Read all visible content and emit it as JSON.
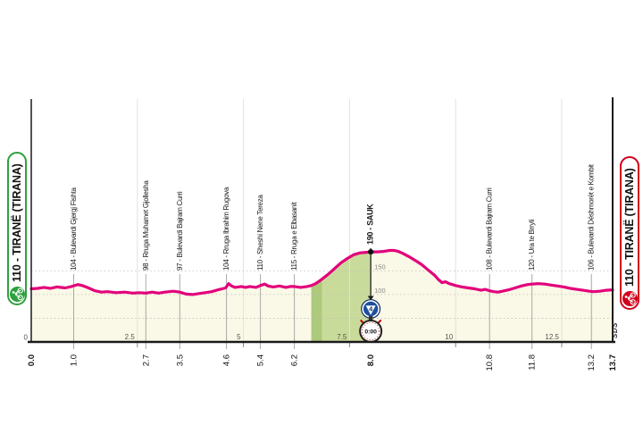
{
  "race": {
    "start_label": "110 - TIRANË (TIRANA)",
    "finish_label": "110 - TIRANË (TIRANA)",
    "branding": "SDS"
  },
  "colors": {
    "pink": "#E2017B",
    "area_fill": "#FAF8E6",
    "climb_fill": "#C9DB9B",
    "climb_steep_fill": "#ADC97C",
    "start_green": "#2DA13C",
    "finish_red": "#D0021B",
    "axis": "#1A1A1A",
    "grid_dotted": "#BFBFBF",
    "grid_major": "#E3E3D9",
    "waypoint_line": "#A8A8A8",
    "cat4_blue": "#1D4F9E",
    "cat4_blue_dark": "#0F2B66",
    "timecheck_red": "#C00005"
  },
  "chart_data": {
    "type": "area",
    "x_unit": "km",
    "y_unit": "m",
    "xlim": [
      0,
      13.7
    ],
    "ylim": [
      0,
      200
    ],
    "x_major_ticks": [
      2.5,
      5,
      7.5,
      10,
      12.5
    ],
    "x_major_tick_labels": [
      "2.5",
      "5",
      "7.5",
      "10",
      "12.5"
    ],
    "y_zero_label": "0",
    "grid_elevations": [
      50,
      100,
      150
    ],
    "side_elevation_labels": [
      {
        "label": "150",
        "m": 150
      },
      {
        "label": "100",
        "m": 100
      }
    ],
    "climb_segment": {
      "from_km": 6.6,
      "to_km": 8.0,
      "steep_band_to_km": 6.85
    },
    "waypoints": [
      {
        "km": 0.0,
        "km_label": "0.0",
        "name": "",
        "bold": true,
        "summit": false
      },
      {
        "km": 1.0,
        "km_label": "1.0",
        "name": "104 - Bulevardi Gjergj Fishta",
        "bold": false,
        "summit": false
      },
      {
        "km": 2.7,
        "km_label": "2.7",
        "name": "98 - Rruga Muhamet Gjollesha",
        "bold": false,
        "summit": false
      },
      {
        "km": 3.5,
        "km_label": "3.5",
        "name": "97 - Bulevardi Bajram Curri",
        "bold": false,
        "summit": false
      },
      {
        "km": 4.6,
        "km_label": "4.6",
        "name": "104 - Rruga Ibrahim Rugova",
        "bold": false,
        "summit": false
      },
      {
        "km": 5.4,
        "km_label": "5.4",
        "name": "110 - Sheshi Nene Tereza",
        "bold": false,
        "summit": false
      },
      {
        "km": 6.2,
        "km_label": "6.2",
        "name": "115 - Rruga e Elbasanit",
        "bold": false,
        "summit": false
      },
      {
        "km": 8.0,
        "km_label": "8.0",
        "name": "190 - SAUK",
        "bold": true,
        "summit": true
      },
      {
        "km": 10.8,
        "km_label": "10.8",
        "name": "108 - Bulevardi Bajram Curri",
        "bold": false,
        "summit": false
      },
      {
        "km": 11.8,
        "km_label": "11.8",
        "name": "120 - Ura te Brryli",
        "bold": false,
        "summit": false
      },
      {
        "km": 13.2,
        "km_label": "13.2",
        "name": "106 - Bulevardi Dëshmorët e Kombit",
        "bold": false,
        "summit": false
      },
      {
        "km": 13.7,
        "km_label": "13.7",
        "name": "",
        "bold": true,
        "summit": false
      }
    ],
    "markers": {
      "summit": {
        "km": 8.0,
        "m": 190
      },
      "category4_climb": {
        "km": 8.0,
        "label": "4"
      },
      "time_check": {
        "km": 8.0,
        "label": "0:00"
      }
    },
    "profile": [
      [
        0,
        112
      ],
      [
        0.15,
        113
      ],
      [
        0.3,
        115
      ],
      [
        0.45,
        113
      ],
      [
        0.6,
        116
      ],
      [
        0.8,
        114
      ],
      [
        0.95,
        117
      ],
      [
        1.1,
        121
      ],
      [
        1.2,
        119
      ],
      [
        1.35,
        114
      ],
      [
        1.5,
        108
      ],
      [
        1.65,
        105
      ],
      [
        1.8,
        106
      ],
      [
        2,
        104
      ],
      [
        2.2,
        105
      ],
      [
        2.4,
        103
      ],
      [
        2.55,
        104
      ],
      [
        2.7,
        103
      ],
      [
        2.85,
        105
      ],
      [
        3,
        103
      ],
      [
        3.15,
        105
      ],
      [
        3.35,
        107
      ],
      [
        3.5,
        105
      ],
      [
        3.65,
        101
      ],
      [
        3.8,
        100
      ],
      [
        3.95,
        102
      ],
      [
        4.1,
        104
      ],
      [
        4.25,
        106
      ],
      [
        4.4,
        110
      ],
      [
        4.5,
        112
      ],
      [
        4.58,
        114
      ],
      [
        4.65,
        123
      ],
      [
        4.72,
        118
      ],
      [
        4.8,
        115
      ],
      [
        4.95,
        117
      ],
      [
        5.05,
        115
      ],
      [
        5.15,
        117
      ],
      [
        5.3,
        115
      ],
      [
        5.4,
        119
      ],
      [
        5.5,
        122
      ],
      [
        5.58,
        118
      ],
      [
        5.7,
        116
      ],
      [
        5.85,
        118
      ],
      [
        6,
        115
      ],
      [
        6.1,
        117
      ],
      [
        6.2,
        117
      ],
      [
        6.35,
        115
      ],
      [
        6.5,
        117
      ],
      [
        6.6,
        119
      ],
      [
        6.7,
        123
      ],
      [
        6.8,
        129
      ],
      [
        6.9,
        136
      ],
      [
        7,
        143
      ],
      [
        7.1,
        151
      ],
      [
        7.2,
        159
      ],
      [
        7.3,
        167
      ],
      [
        7.45,
        176
      ],
      [
        7.6,
        184
      ],
      [
        7.75,
        188
      ],
      [
        7.9,
        189
      ],
      [
        8,
        190
      ],
      [
        8.15,
        190
      ],
      [
        8.3,
        191
      ],
      [
        8.45,
        193
      ],
      [
        8.55,
        193
      ],
      [
        8.65,
        191
      ],
      [
        8.75,
        187
      ],
      [
        8.9,
        180
      ],
      [
        9.05,
        172
      ],
      [
        9.2,
        163
      ],
      [
        9.35,
        152
      ],
      [
        9.5,
        141
      ],
      [
        9.6,
        131
      ],
      [
        9.68,
        125
      ],
      [
        9.76,
        127
      ],
      [
        9.85,
        123
      ],
      [
        10,
        119
      ],
      [
        10.15,
        116
      ],
      [
        10.3,
        114
      ],
      [
        10.45,
        112
      ],
      [
        10.6,
        109
      ],
      [
        10.7,
        111
      ],
      [
        10.8,
        108
      ],
      [
        10.9,
        106
      ],
      [
        11,
        105
      ],
      [
        11.1,
        107
      ],
      [
        11.25,
        110
      ],
      [
        11.4,
        114
      ],
      [
        11.55,
        118
      ],
      [
        11.7,
        121
      ],
      [
        11.8,
        122
      ],
      [
        11.95,
        123
      ],
      [
        12.1,
        122
      ],
      [
        12.25,
        120
      ],
      [
        12.4,
        118
      ],
      [
        12.55,
        116
      ],
      [
        12.7,
        113
      ],
      [
        12.85,
        111
      ],
      [
        13,
        109
      ],
      [
        13.15,
        107
      ],
      [
        13.25,
        106
      ],
      [
        13.4,
        107
      ],
      [
        13.55,
        109
      ],
      [
        13.7,
        110
      ]
    ]
  }
}
